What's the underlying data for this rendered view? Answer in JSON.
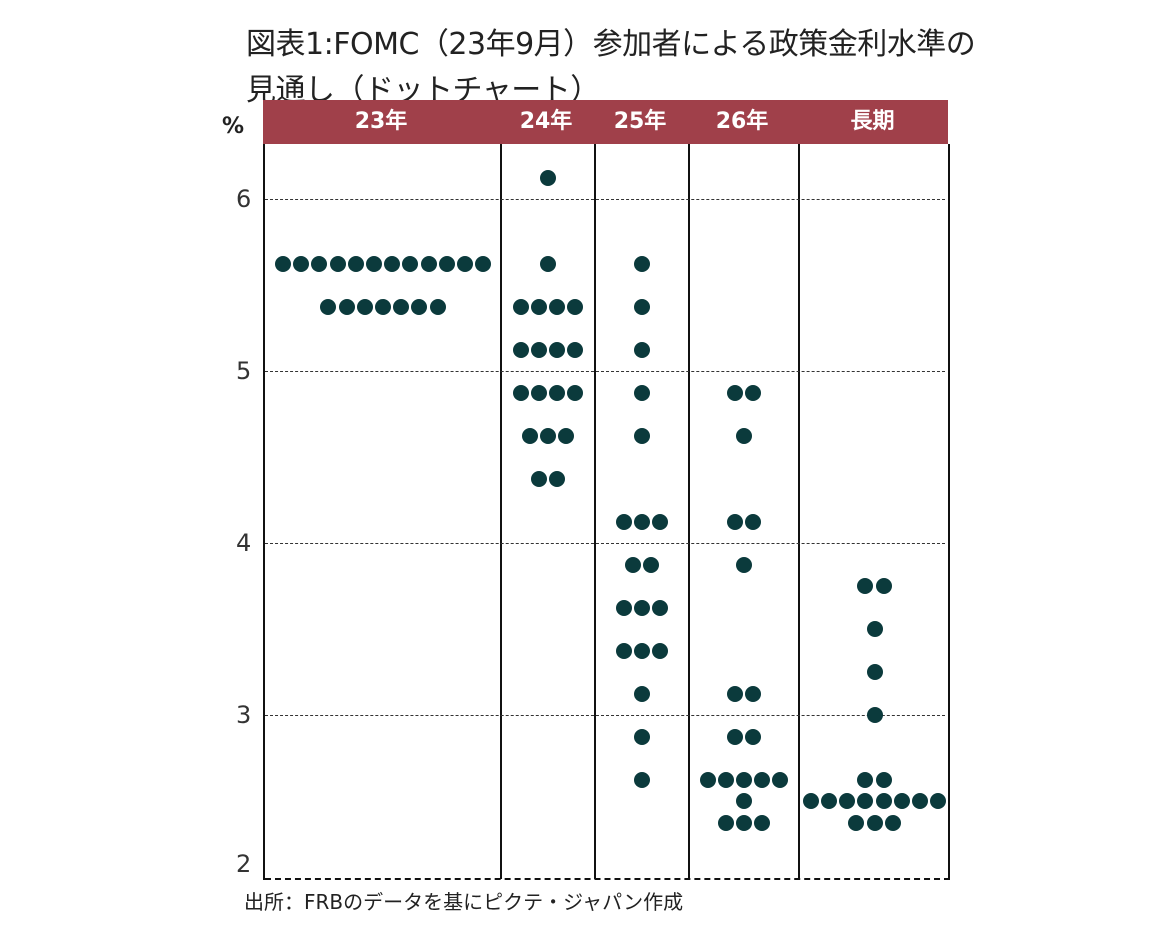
{
  "title_line1": "図表1:FOMC（23年9月）参加者による政策金利水準の",
  "title_line2": "見通し（ドットチャート）",
  "y_unit": "%",
  "source": "出所：FRBのデータを基にピクテ・ジャパン作成",
  "colors": {
    "header": "#a0404a",
    "dot": "#0b3a3c"
  },
  "chart_data": {
    "type": "scatter",
    "title": "図表1:FOMC（23年9月）参加者による政策金利水準の見通し（ドットチャート）",
    "xlabel": "",
    "ylabel": "%",
    "ylim": [
      2,
      6.4
    ],
    "yticks": [
      2,
      3,
      4,
      5,
      6
    ],
    "grid": "horizontal dashed",
    "categories": [
      "23年",
      "24年",
      "25年",
      "26年",
      "長期"
    ],
    "series": [
      {
        "name": "23年",
        "points": [
          {
            "rate": 5.625,
            "count": 12
          },
          {
            "rate": 5.375,
            "count": 7
          }
        ]
      },
      {
        "name": "24年",
        "points": [
          {
            "rate": 6.125,
            "count": 1
          },
          {
            "rate": 5.625,
            "count": 1
          },
          {
            "rate": 5.375,
            "count": 4
          },
          {
            "rate": 5.125,
            "count": 4
          },
          {
            "rate": 4.875,
            "count": 4
          },
          {
            "rate": 4.625,
            "count": 3
          },
          {
            "rate": 4.375,
            "count": 2
          }
        ]
      },
      {
        "name": "25年",
        "points": [
          {
            "rate": 5.625,
            "count": 1
          },
          {
            "rate": 5.375,
            "count": 1
          },
          {
            "rate": 5.125,
            "count": 1
          },
          {
            "rate": 4.875,
            "count": 1
          },
          {
            "rate": 4.625,
            "count": 1
          },
          {
            "rate": 4.125,
            "count": 3
          },
          {
            "rate": 3.875,
            "count": 2
          },
          {
            "rate": 3.625,
            "count": 3
          },
          {
            "rate": 3.375,
            "count": 3
          },
          {
            "rate": 3.125,
            "count": 1
          },
          {
            "rate": 2.875,
            "count": 1
          },
          {
            "rate": 2.625,
            "count": 1
          }
        ]
      },
      {
        "name": "26年",
        "points": [
          {
            "rate": 4.875,
            "count": 2
          },
          {
            "rate": 4.625,
            "count": 1
          },
          {
            "rate": 4.125,
            "count": 2
          },
          {
            "rate": 3.875,
            "count": 1
          },
          {
            "rate": 3.125,
            "count": 2
          },
          {
            "rate": 2.875,
            "count": 2
          },
          {
            "rate": 2.625,
            "count": 5
          },
          {
            "rate": 2.5,
            "count": 1
          },
          {
            "rate": 2.375,
            "count": 3
          }
        ]
      },
      {
        "name": "長期",
        "points": [
          {
            "rate": 3.75,
            "count": 2
          },
          {
            "rate": 3.5,
            "count": 1
          },
          {
            "rate": 3.25,
            "count": 1
          },
          {
            "rate": 3.0,
            "count": 1
          },
          {
            "rate": 2.625,
            "count": 2
          },
          {
            "rate": 2.5,
            "count": 8
          },
          {
            "rate": 2.375,
            "count": 3
          }
        ]
      }
    ]
  }
}
